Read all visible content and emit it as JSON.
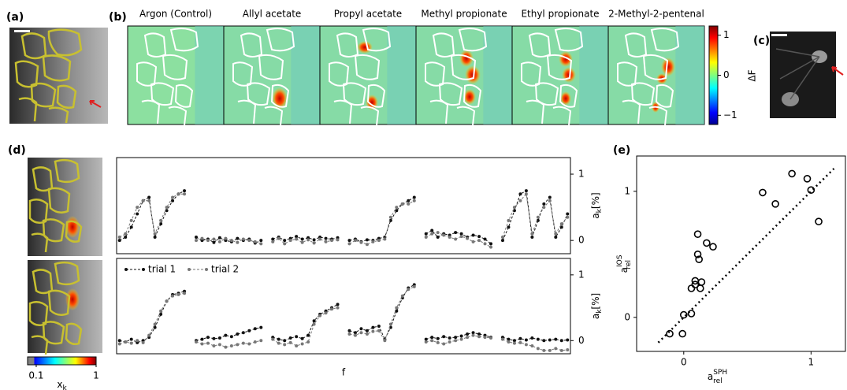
{
  "panel_labels": {
    "a": "(a)",
    "b": "(b)",
    "c": "(c)",
    "d": "(d)",
    "e": "(e)"
  },
  "chart_data": [
    {
      "type": "image-row",
      "titles": [
        "Argon (Control)",
        "Allyl acetate",
        "Propyl acetate",
        "Methyl propionate",
        "Ethyl propionate",
        "2-Methyl-2-pentenal"
      ],
      "colorbar": {
        "label": "ΔF",
        "ylim": [
          -1.23,
          1.23
        ],
        "yticks": [
          {
            "value": -1,
            "label": "−1"
          },
          0,
          1
        ]
      }
    },
    {
      "type": "line",
      "ylabel": {
        "base": "a",
        "sub": "k",
        "suffix": "[%]"
      },
      "ylim": [
        -0.2,
        1.25
      ],
      "yticks": [
        0,
        1
      ],
      "legend": false,
      "series": [
        {
          "color": "#111111",
          "values": [
            0,
            0.05,
            0.2,
            0.4,
            0.6,
            0.65,
            0.05,
            0.25,
            0.45,
            0.6,
            0.7,
            0.75,
            null,
            0.05,
            0,
            0.02,
            -0.03,
            0.04,
            0,
            -0.02,
            0.03,
            0,
            0.02,
            -0.04,
            0,
            null,
            0.02,
            0.05,
            0,
            0.03,
            0.06,
            0.02,
            0.04,
            0.01,
            0.05,
            0.03,
            0.02,
            0.04,
            null,
            0,
            0.02,
            -0.02,
            0.01,
            0,
            0.03,
            0.05,
            0.3,
            0.45,
            0.55,
            0.6,
            0.65,
            null,
            0.1,
            0.15,
            0.05,
            0.1,
            0.08,
            0.12,
            0.1,
            0.05,
            0.08,
            0.06,
            0.02,
            -0.05,
            null,
            0,
            0.2,
            0.45,
            0.7,
            0.75,
            0.05,
            0.3,
            0.55,
            0.65,
            0.05,
            0.2,
            0.4
          ]
        },
        {
          "color": "#777777",
          "values": [
            0.05,
            0.1,
            0.3,
            0.5,
            0.6,
            0.6,
            0.1,
            0.3,
            0.5,
            0.65,
            0.7,
            0.7,
            null,
            0,
            0.03,
            0,
            0.02,
            -0.02,
            0.03,
            0,
            -0.03,
            0.02,
            0,
            -0.02,
            -0.05,
            null,
            -0.02,
            0.03,
            -0.05,
            0,
            0.02,
            -0.03,
            0.01,
            -0.04,
            0.02,
            -0.02,
            0,
            0.01,
            null,
            -0.05,
            0,
            -0.03,
            -0.06,
            -0.02,
            0,
            0.02,
            0.35,
            0.5,
            0.55,
            0.55,
            0.6,
            null,
            0.05,
            0.1,
            0.12,
            0.08,
            0.05,
            0.02,
            0.06,
            0.03,
            -0.02,
            0,
            -0.05,
            -0.1,
            null,
            0.05,
            0.3,
            0.5,
            0.6,
            0.7,
            0.1,
            0.35,
            0.5,
            0.6,
            0.1,
            0.25,
            0.35
          ]
        }
      ]
    },
    {
      "type": "line",
      "ylabel": {
        "base": "a",
        "sub": "k",
        "suffix": "[%]"
      },
      "xlabel": "f",
      "ylim": [
        -0.2,
        1.25
      ],
      "yticks": [
        0,
        1
      ],
      "legend": "upper left",
      "series": [
        {
          "name": "trial 1",
          "color": "#111111",
          "values": [
            0,
            -0.02,
            0.02,
            -0.03,
            0,
            0.05,
            0.2,
            0.4,
            0.6,
            0.7,
            0.72,
            0.75,
            null,
            0,
            0.02,
            0.05,
            0.03,
            0.04,
            0.08,
            0.06,
            0.1,
            0.12,
            0.15,
            0.18,
            0.2,
            null,
            0.05,
            0.02,
            0,
            0.04,
            0.06,
            0.03,
            0.08,
            0.3,
            0.4,
            0.45,
            0.5,
            0.55,
            null,
            0.15,
            0.12,
            0.18,
            0.15,
            0.2,
            0.22,
            0.02,
            0.2,
            0.45,
            0.65,
            0.8,
            0.85,
            null,
            0.02,
            0.05,
            0.03,
            0.06,
            0.04,
            0.05,
            0.07,
            0.1,
            0.12,
            0.1,
            0.08,
            0.05,
            null,
            0.05,
            0.02,
            0,
            0.03,
            0.01,
            0.04,
            0.02,
            0,
            0.01,
            0.02,
            0,
            0.01
          ]
        },
        {
          "name": "trial 2",
          "color": "#777777",
          "values": [
            -0.05,
            -0.02,
            -0.04,
            0,
            -0.03,
            0.08,
            0.25,
            0.45,
            0.6,
            0.68,
            0.7,
            0.72,
            null,
            -0.02,
            -0.05,
            -0.04,
            -0.08,
            -0.06,
            -0.1,
            -0.08,
            -0.06,
            -0.04,
            -0.05,
            -0.02,
            0,
            null,
            0.02,
            -0.04,
            -0.06,
            -0.03,
            -0.08,
            -0.05,
            -0.02,
            0.25,
            0.38,
            0.42,
            0.48,
            0.5,
            null,
            0.1,
            0.08,
            0.12,
            0.1,
            0.14,
            0.15,
            0,
            0.25,
            0.5,
            0.68,
            0.78,
            0.82,
            null,
            -0.02,
            0,
            -0.03,
            -0.05,
            -0.02,
            0,
            0.02,
            0.05,
            0.08,
            0.06,
            0.05,
            0.04,
            null,
            0.02,
            -0.02,
            -0.04,
            -0.03,
            -0.06,
            -0.08,
            -0.12,
            -0.15,
            -0.15,
            -0.12,
            -0.15,
            -0.14
          ]
        }
      ]
    },
    {
      "type": "scatter",
      "xlabel": {
        "base": "a",
        "sub": "rel",
        "sup": "SPH"
      },
      "ylabel": {
        "base": "a",
        "sub": "rel",
        "sup": "IOS"
      },
      "xlim": [
        -0.37,
        1.27
      ],
      "ylim": [
        -0.27,
        1.28
      ],
      "xticks": [
        0,
        1
      ],
      "yticks": [
        0,
        1
      ],
      "x": [
        -0.11,
        -0.01,
        0,
        0.06,
        0.06,
        0.09,
        0.13,
        0.14,
        0.09,
        0.12,
        0.11,
        0.18,
        0.23,
        0.11,
        0.72,
        0.62,
        0.85,
        0.97,
        1.0,
        1.06
      ],
      "y": [
        -0.13,
        -0.13,
        0.02,
        0.03,
        0.23,
        0.26,
        0.23,
        0.28,
        0.29,
        0.46,
        0.5,
        0.59,
        0.56,
        0.66,
        0.9,
        0.99,
        1.14,
        1.1,
        1.01,
        0.76
      ],
      "reference_line": {
        "x": [
          -0.2,
          1.18
        ],
        "y": [
          -0.2,
          1.18
        ]
      }
    },
    {
      "type": "colorbar",
      "label": {
        "base": "x",
        "sub": "k"
      },
      "xlim": [
        -0.03,
        1
      ],
      "xticks": [
        0.1,
        1
      ]
    }
  ]
}
